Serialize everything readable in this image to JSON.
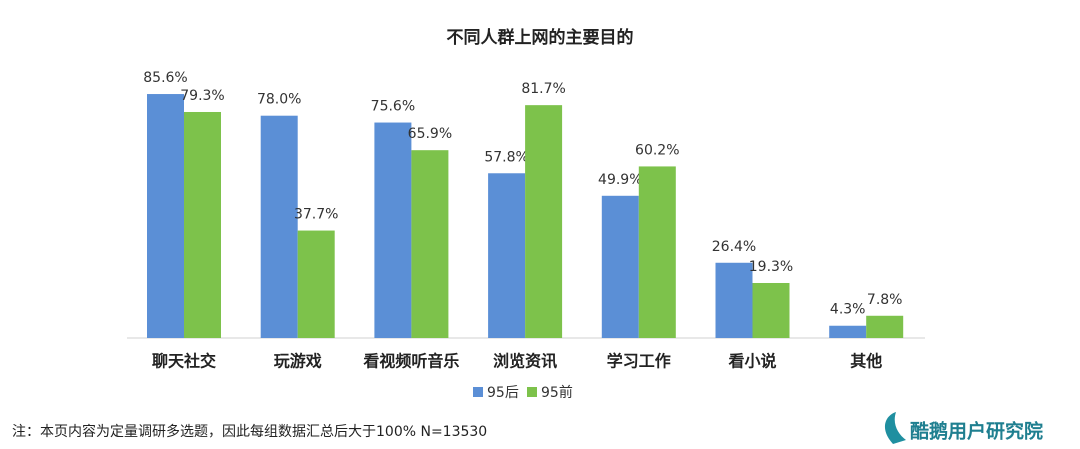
{
  "chart_data": {
    "type": "bar",
    "title": "不同人群上网的主要目的",
    "categories": [
      "聊天社交",
      "玩游戏",
      "看视频听音乐",
      "浏览资讯",
      "学习工作",
      "看小说",
      "其他"
    ],
    "series": [
      {
        "name": "95后",
        "color": "#5b8fd6",
        "values": [
          85.6,
          78.0,
          75.6,
          57.8,
          49.9,
          26.4,
          4.3
        ],
        "value_labels": [
          "85.6%",
          "78.0%",
          "75.6%",
          "57.8%",
          "49.9%",
          "26.4%",
          "4.3%"
        ]
      },
      {
        "name": "95前",
        "color": "#7dc24b",
        "values": [
          79.3,
          37.7,
          65.9,
          81.7,
          60.2,
          19.3,
          7.8
        ],
        "value_labels": [
          "79.3%",
          "37.7%",
          "65.9%",
          "81.7%",
          "60.2%",
          "19.3%",
          "7.8%"
        ]
      }
    ],
    "legend": "bottom",
    "note": "注：本页内容为定量调研多选题，因此每组数据汇总后大于100%  N=13530",
    "logo": "酷鹅用户研究院"
  }
}
